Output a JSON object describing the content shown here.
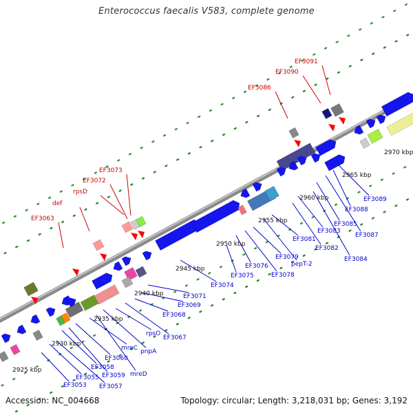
{
  "title": "Enterococcus faecalis V583, complete genome",
  "footer": {
    "accession": "Accession: NC_004668",
    "summary": "Topology: circular; Length: 3,218,031 bp; Genes: 3,192"
  },
  "colors": {
    "cds": "#1515ee",
    "red_label": "#cc0000",
    "blue_label": "#0000cc",
    "backbone": "#888888"
  },
  "scale_labels": [
    "2925 kbp",
    "2930 kbp",
    "2935 kbp",
    "2940 kbp",
    "2945 kbp",
    "2950 kbp",
    "2955 kbp",
    "2960 kbp",
    "2965 kbp",
    "2970 kbp"
  ],
  "top_labels": [
    "EF3063",
    "def",
    "rpsD",
    "EF3072",
    "EF3073",
    "EF3086",
    "EF3090",
    "EF3091"
  ],
  "bottom_labels": [
    "EF3053",
    "EF3055",
    "EF3057",
    "EF3058",
    "EF3059",
    "EF3060",
    "mreC",
    "mreD",
    "pnpA",
    "rpsO",
    "EF3067",
    "EF3068",
    "EF3069",
    "EF3071",
    "EF3074",
    "EF3075",
    "EF3076",
    "EF3078",
    "EF3079",
    "pepT-2",
    "EF3081",
    "EF3082",
    "EF3083",
    "EF3084",
    "EF3085",
    "EF3087",
    "EF3088",
    "EF3089"
  ]
}
